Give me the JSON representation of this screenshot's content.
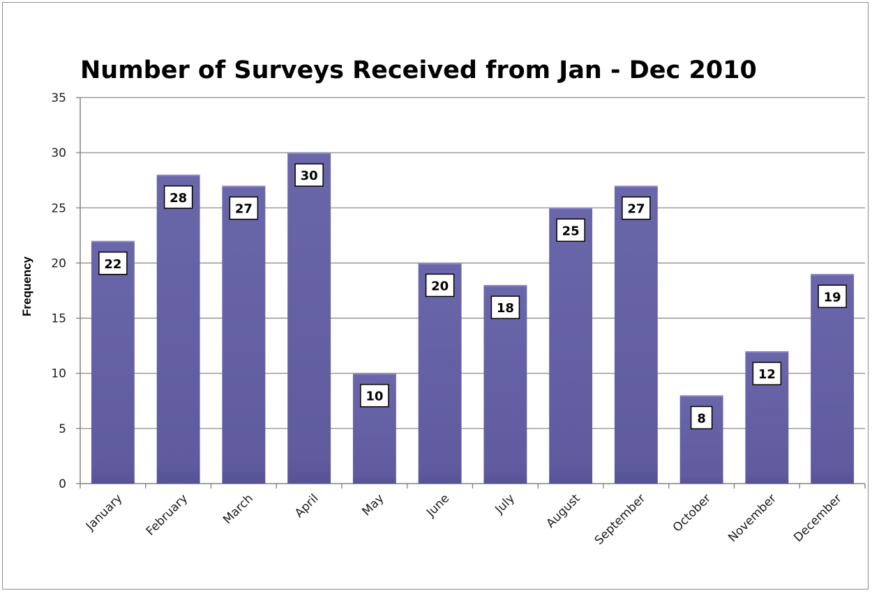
{
  "chart_data": {
    "type": "bar",
    "title": "Number of Surveys Received from Jan - Dec 2010",
    "xlabel": "",
    "ylabel": "Frequency",
    "ylim": [
      0,
      35
    ],
    "yticks": [
      0,
      5,
      10,
      15,
      20,
      25,
      30,
      35
    ],
    "grid": true,
    "legend": "none",
    "categories": [
      "January",
      "February",
      "March",
      "April",
      "May",
      "June",
      "July",
      "August",
      "September",
      "October",
      "November",
      "December"
    ],
    "values": [
      22,
      28,
      27,
      30,
      10,
      20,
      18,
      25,
      27,
      8,
      12,
      19
    ],
    "bar_color": "#6965a8",
    "gridline_color": "#8c8c8c",
    "label_box_border": "#000000"
  }
}
